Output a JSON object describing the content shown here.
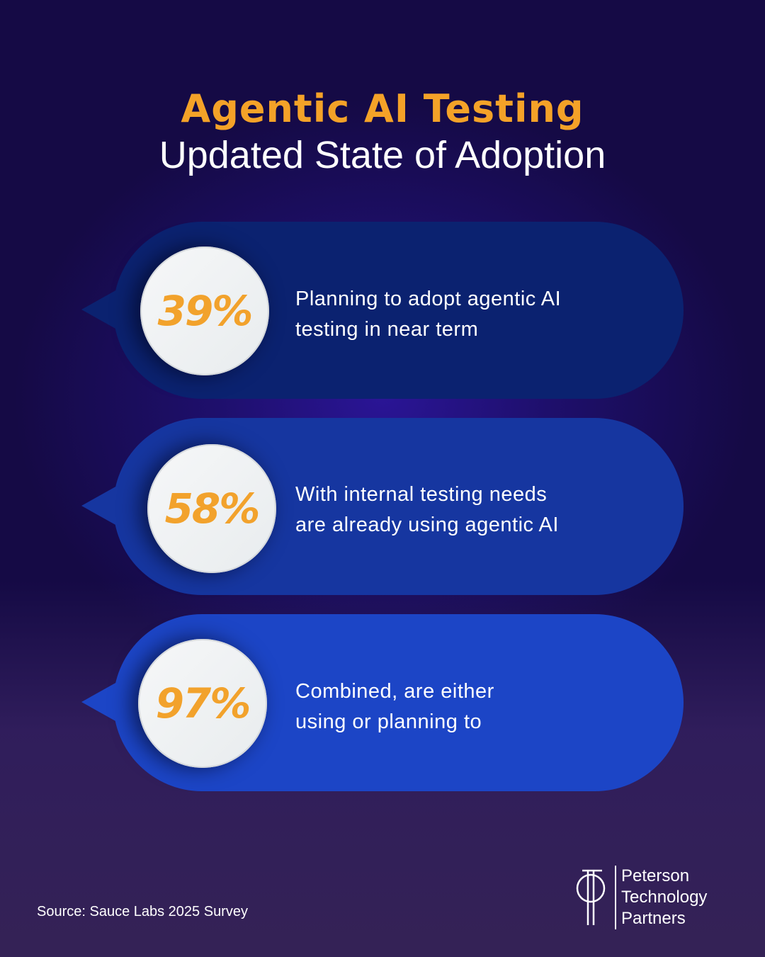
{
  "title": {
    "line1": "Agentic AI Testing",
    "line2": "Updated State of Adoption"
  },
  "stats": [
    {
      "value": "39%",
      "text_line1": "Planning to adopt agentic AI",
      "text_line2": "testing in near term",
      "color": "#0b2270"
    },
    {
      "value": "58%",
      "text_line1": "With internal testing needs",
      "text_line2": "are already using agentic AI",
      "color": "#1636a0"
    },
    {
      "value": "97%",
      "text_line1": "Combined, are either",
      "text_line2": "using or planning to",
      "color": "#1c45c6"
    }
  ],
  "accent": "#f2a22c",
  "source": "Source: Sauce Labs 2025 Survey",
  "logo": {
    "line1": "Peterson",
    "line2": "Technology",
    "line3": "Partners"
  }
}
